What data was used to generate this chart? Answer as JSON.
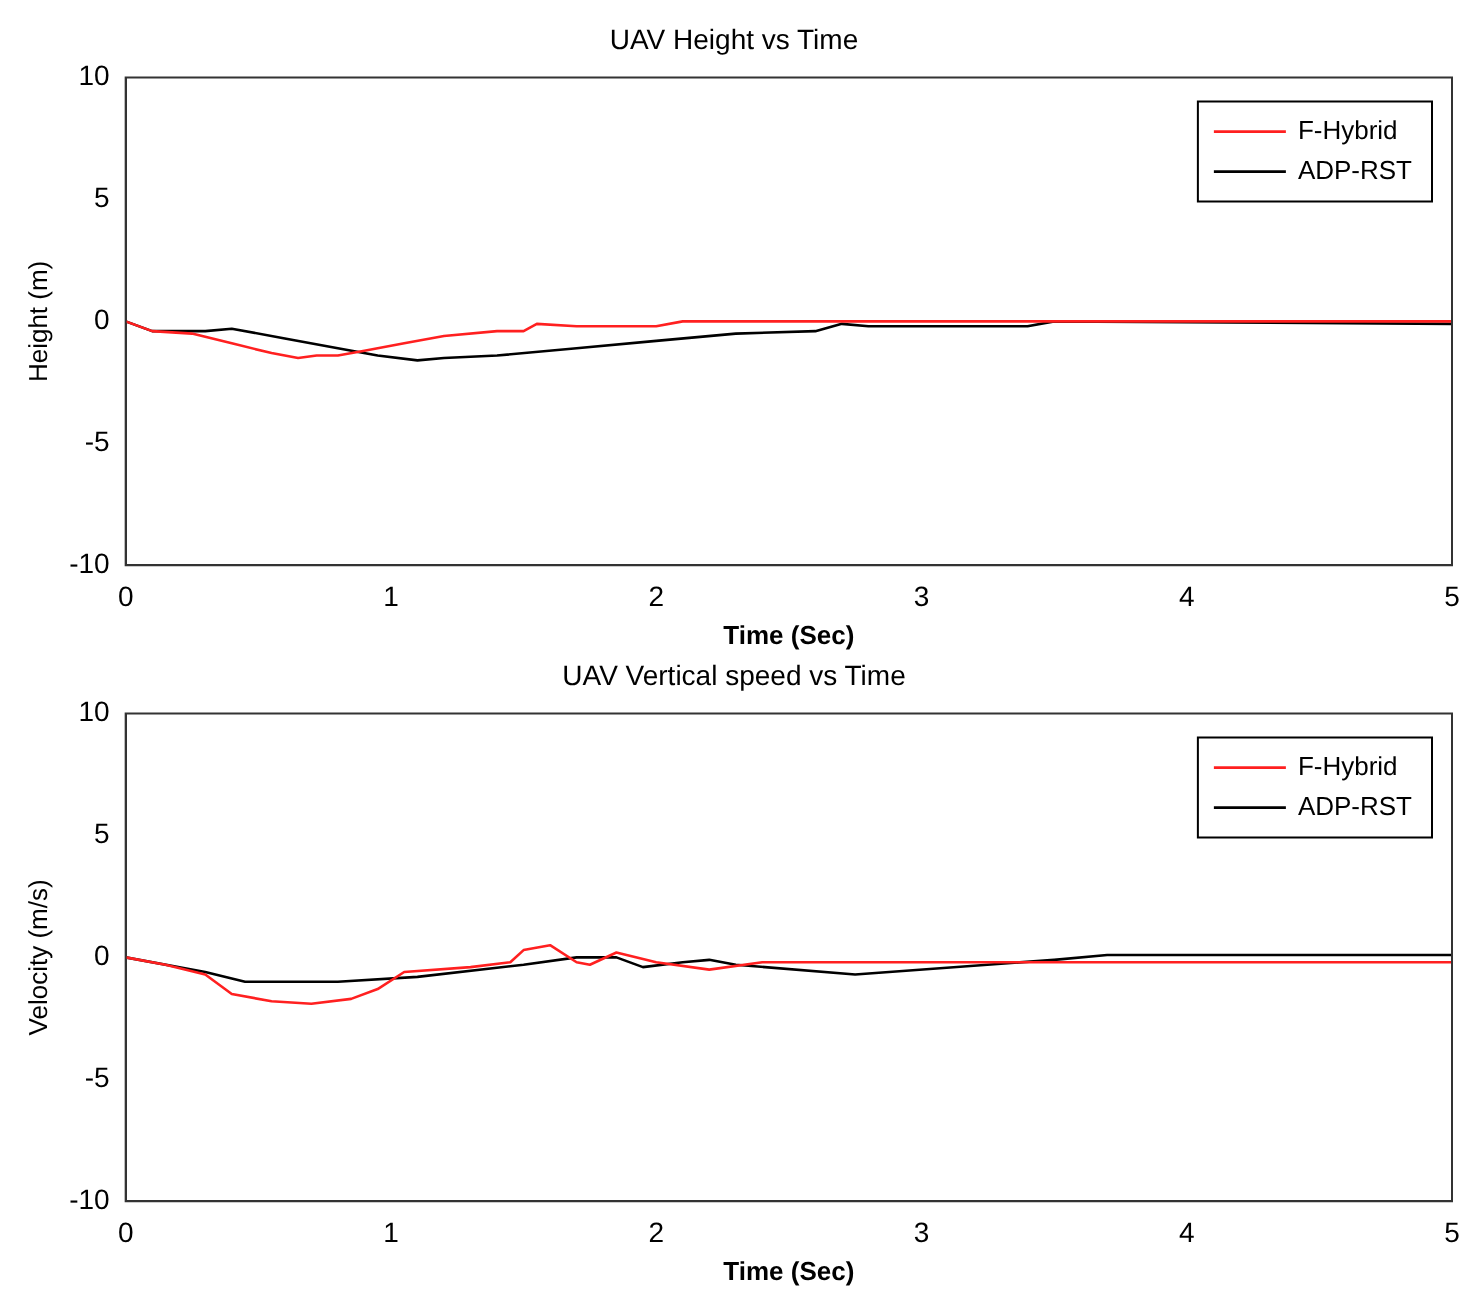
{
  "chart_data": [
    {
      "type": "line",
      "title": "UAV Height vs Time",
      "xlabel": "Time (Sec)",
      "ylabel": "Height (m)",
      "xlim": [
        0,
        5
      ],
      "xticks": [
        0,
        1,
        2,
        3,
        4,
        5
      ],
      "ylim": [
        -10,
        10
      ],
      "yticks": [
        -10,
        -5,
        0,
        5,
        10
      ],
      "grid": false,
      "legend": "top right",
      "marker": "none",
      "series": [
        {
          "name": "F-Hybrid",
          "color": "#ff2020",
          "x": [
            0,
            0.1,
            0.25,
            0.4,
            0.55,
            0.65,
            0.72,
            0.8,
            0.9,
            1.05,
            1.2,
            1.4,
            1.5,
            1.55,
            1.7,
            2.0,
            2.1,
            3,
            5
          ],
          "values": [
            0,
            -0.4,
            -0.5,
            -0.9,
            -1.3,
            -1.5,
            -1.4,
            -1.4,
            -1.2,
            -0.9,
            -0.6,
            -0.4,
            -0.4,
            -0.1,
            -0.2,
            -0.2,
            0,
            0,
            0
          ]
        },
        {
          "name": "ADP-RST",
          "color": "#000000",
          "x": [
            0,
            0.1,
            0.3,
            0.4,
            0.6,
            0.8,
            0.95,
            1.1,
            1.2,
            1.4,
            1.7,
            2,
            2.3,
            2.6,
            2.7,
            2.8,
            3.4,
            3.5,
            5
          ],
          "values": [
            0,
            -0.4,
            -0.4,
            -0.3,
            -0.7,
            -1.1,
            -1.4,
            -1.6,
            -1.5,
            -1.4,
            -1.1,
            -0.8,
            -0.5,
            -0.4,
            -0.1,
            -0.2,
            -0.2,
            0,
            -0.1
          ]
        }
      ]
    },
    {
      "type": "line",
      "title": "UAV Vertical speed vs Time",
      "xlabel": "Time (Sec)",
      "ylabel": "Velocity (m/s)",
      "xlim": [
        0,
        5
      ],
      "xticks": [
        0,
        1,
        2,
        3,
        4,
        5
      ],
      "ylim": [
        -10,
        10
      ],
      "yticks": [
        -10,
        -5,
        0,
        5,
        10
      ],
      "grid": false,
      "legend": "top right",
      "marker": "none",
      "series": [
        {
          "name": "F-Hybrid",
          "color": "#ff2020",
          "x": [
            0,
            0.15,
            0.3,
            0.4,
            0.55,
            0.7,
            0.85,
            0.95,
            1.05,
            1.3,
            1.45,
            1.5,
            1.6,
            1.7,
            1.75,
            1.85,
            2.0,
            2.2,
            2.4,
            5
          ],
          "values": [
            0,
            -0.3,
            -0.7,
            -1.5,
            -1.8,
            -1.9,
            -1.7,
            -1.3,
            -0.6,
            -0.4,
            -0.2,
            0.3,
            0.5,
            -0.2,
            -0.3,
            0.2,
            -0.2,
            -0.5,
            -0.2,
            -0.2
          ]
        },
        {
          "name": "ADP-RST",
          "color": "#000000",
          "x": [
            0,
            0.3,
            0.45,
            0.8,
            1.1,
            1.5,
            1.7,
            1.85,
            1.95,
            2.1,
            2.2,
            2.3,
            2.75,
            3.5,
            3.7,
            5
          ],
          "values": [
            0,
            -0.6,
            -1.0,
            -1.0,
            -0.8,
            -0.3,
            0,
            0,
            -0.4,
            -0.2,
            -0.1,
            -0.3,
            -0.7,
            -0.1,
            0.1,
            0.1
          ]
        }
      ]
    }
  ]
}
